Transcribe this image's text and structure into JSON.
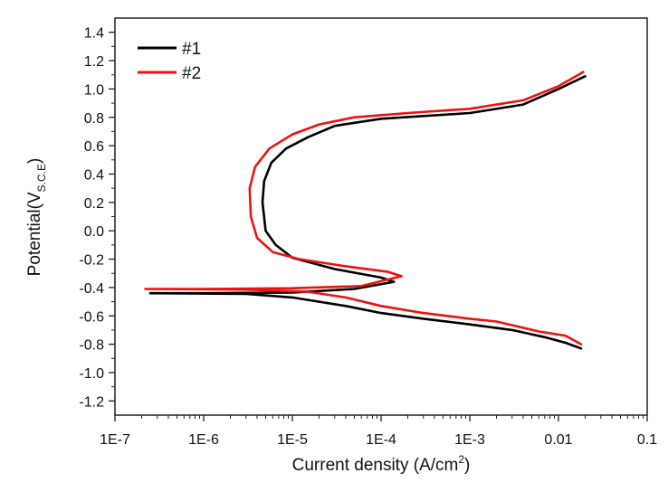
{
  "chart_data": {
    "type": "line",
    "title": "",
    "xlabel": "Current density (A/cm",
    "xlabel_sup": "2",
    "xlabel_end": ")",
    "ylabel": "Potential(V",
    "ylabel_sub": "S.C.E",
    "ylabel_end": ")",
    "xscale": "log",
    "xlim": [
      1e-07,
      0.1
    ],
    "ylim": [
      -1.3,
      1.5
    ],
    "xticks": [
      1e-07,
      1e-06,
      1e-05,
      0.0001,
      0.001,
      0.01,
      0.1
    ],
    "xtick_labels": [
      "1E-7",
      "1E-6",
      "1E-5",
      "1E-4",
      "1E-3",
      "0.01",
      "0.1"
    ],
    "yticks": [
      1.4,
      1.2,
      1.0,
      0.8,
      0.6,
      0.4,
      0.2,
      0.0,
      -0.2,
      -0.4,
      -0.6,
      -0.8,
      -1.0,
      -1.2
    ],
    "ytick_labels": [
      "1.4",
      "1.2",
      "1.0",
      "0.8",
      "0.6",
      "0.4",
      "0.2",
      "0.0",
      "-0.2",
      "-0.4",
      "-0.6",
      "-0.8",
      "-1.0",
      "-1.2"
    ],
    "grid": false,
    "legend_position": "top-left",
    "series": [
      {
        "name": "#1",
        "color": "#000000",
        "x": [
          0.018,
          0.012,
          0.007,
          0.003,
          0.001,
          0.0003,
          0.0001,
          4e-05,
          1e-05,
          3e-06,
          2.5e-07,
          1e-06,
          1e-05,
          5e-05,
          0.00014,
          0.0001,
          3e-05,
          1e-05,
          6.5e-06,
          5e-06,
          4.6e-06,
          4.8e-06,
          5.8e-06,
          8.5e-06,
          1.5e-05,
          3e-05,
          0.0001,
          0.001,
          0.004,
          0.01,
          0.02
        ],
        "y": [
          -0.83,
          -0.79,
          -0.75,
          -0.7,
          -0.66,
          -0.62,
          -0.58,
          -0.53,
          -0.47,
          -0.445,
          -0.44,
          -0.44,
          -0.435,
          -0.41,
          -0.36,
          -0.33,
          -0.27,
          -0.19,
          -0.1,
          0.0,
          0.2,
          0.35,
          0.48,
          0.58,
          0.66,
          0.74,
          0.79,
          0.83,
          0.89,
          1.0,
          1.09
        ]
      },
      {
        "name": "#2",
        "color": "#ee1111",
        "x": [
          0.018,
          0.012,
          0.006,
          0.002,
          0.001,
          0.0003,
          0.0001,
          4e-05,
          1.5e-05,
          3e-06,
          2.2e-07,
          1e-06,
          1e-05,
          6e-05,
          0.00017,
          0.00012,
          4e-05,
          1.2e-05,
          6e-06,
          4e-06,
          3.4e-06,
          3.3e-06,
          3.8e-06,
          5.5e-06,
          1e-05,
          2e-05,
          5e-05,
          0.0002,
          0.001,
          0.004,
          0.01,
          0.019
        ],
        "y": [
          -0.8,
          -0.74,
          -0.71,
          -0.64,
          -0.62,
          -0.58,
          -0.53,
          -0.47,
          -0.43,
          -0.415,
          -0.41,
          -0.41,
          -0.405,
          -0.39,
          -0.32,
          -0.29,
          -0.25,
          -0.2,
          -0.15,
          -0.05,
          0.1,
          0.3,
          0.45,
          0.58,
          0.68,
          0.75,
          0.8,
          0.83,
          0.86,
          0.92,
          1.02,
          1.12
        ]
      }
    ]
  }
}
